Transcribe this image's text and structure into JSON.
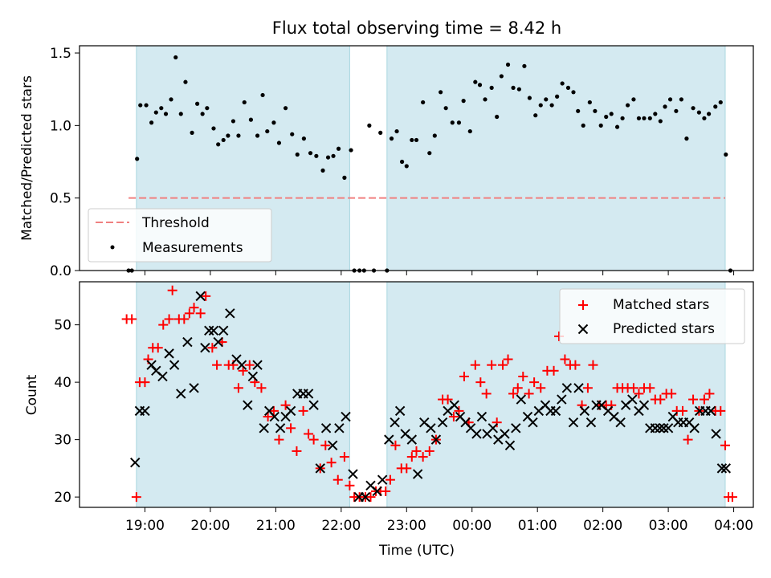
{
  "chart_data": [
    {
      "type": "scatter",
      "title": "Flux total observing time = 8.42 h",
      "xlabel": "",
      "ylabel": "Matched/Predicted stars",
      "ylim": [
        0.0,
        1.55
      ],
      "yticks": [
        "0.0",
        "0.5",
        "1.0",
        "1.5"
      ],
      "xtick_values": [
        19,
        20,
        21,
        22,
        23,
        24,
        25,
        26,
        27,
        28
      ],
      "xlim": [
        18.0,
        28.3
      ],
      "grid": false,
      "legend_position": "lower-left",
      "observing_windows": [
        [
          18.87,
          22.13
        ],
        [
          22.7,
          27.87
        ]
      ],
      "threshold": {
        "name": "Threshold",
        "value": 0.5,
        "x_range": [
          18.75,
          27.87
        ],
        "color": "#f08080"
      },
      "series": [
        {
          "name": "Measurements",
          "color": "#000000",
          "x": [
            18.75,
            18.8,
            18.88,
            18.93,
            19.02,
            19.1,
            19.17,
            19.25,
            19.32,
            19.4,
            19.47,
            19.55,
            19.62,
            19.72,
            19.8,
            19.88,
            19.95,
            20.05,
            20.12,
            20.2,
            20.27,
            20.35,
            20.43,
            20.52,
            20.62,
            20.72,
            20.8,
            20.87,
            20.97,
            21.05,
            21.15,
            21.25,
            21.33,
            21.43,
            21.53,
            21.62,
            21.72,
            21.8,
            21.88,
            21.96,
            22.05,
            22.15,
            22.2,
            22.28,
            22.35,
            22.43,
            22.5,
            22.6,
            22.7,
            22.77,
            22.85,
            22.93,
            23.0,
            23.08,
            23.15,
            23.25,
            23.35,
            23.43,
            23.52,
            23.6,
            23.7,
            23.8,
            23.87,
            23.97,
            24.05,
            24.12,
            24.2,
            24.3,
            24.38,
            24.45,
            24.55,
            24.63,
            24.72,
            24.8,
            24.88,
            24.97,
            25.05,
            25.13,
            25.22,
            25.3,
            25.38,
            25.47,
            25.55,
            25.62,
            25.7,
            25.8,
            25.88,
            25.97,
            26.05,
            26.13,
            26.22,
            26.3,
            26.38,
            26.47,
            26.55,
            26.63,
            26.72,
            26.8,
            26.88,
            26.95,
            27.03,
            27.12,
            27.2,
            27.28,
            27.38,
            27.47,
            27.55,
            27.62,
            27.72,
            27.8,
            27.88,
            27.95
          ],
          "y": [
            0.0,
            0.0,
            0.77,
            1.14,
            1.14,
            1.02,
            1.09,
            1.12,
            1.08,
            1.18,
            1.47,
            1.08,
            1.3,
            0.95,
            1.15,
            1.08,
            1.12,
            0.98,
            0.87,
            0.9,
            0.93,
            1.03,
            0.93,
            1.16,
            1.04,
            0.93,
            1.21,
            0.96,
            1.02,
            0.88,
            1.12,
            0.94,
            0.8,
            0.91,
            0.81,
            0.79,
            0.69,
            0.78,
            0.79,
            0.84,
            0.64,
            0.83,
            0.0,
            0.0,
            0.0,
            1.0,
            0.0,
            0.95,
            0.0,
            0.91,
            0.96,
            0.75,
            0.72,
            0.9,
            0.9,
            1.16,
            0.81,
            0.93,
            1.23,
            1.12,
            1.02,
            1.02,
            1.17,
            0.96,
            1.3,
            1.28,
            1.18,
            1.26,
            1.06,
            1.34,
            1.42,
            1.26,
            1.25,
            1.41,
            1.19,
            1.07,
            1.14,
            1.18,
            1.14,
            1.2,
            1.29,
            1.26,
            1.23,
            1.1,
            1.0,
            1.16,
            1.1,
            1.0,
            1.06,
            1.08,
            0.99,
            1.05,
            1.14,
            1.18,
            1.05,
            1.05,
            1.05,
            1.08,
            1.03,
            1.13,
            1.18,
            1.1,
            1.18,
            0.91,
            1.12,
            1.09,
            1.05,
            1.08,
            1.13,
            1.16,
            0.8,
            0.0
          ]
        }
      ]
    },
    {
      "type": "scatter",
      "title": "",
      "xlabel": "Time (UTC)",
      "ylabel": "Count",
      "ylim": [
        18.2,
        57.5
      ],
      "yticks": [
        "20",
        "30",
        "40",
        "50"
      ],
      "xtick_labels": [
        "19:00",
        "20:00",
        "21:00",
        "22:00",
        "23:00",
        "00:00",
        "01:00",
        "02:00",
        "03:00",
        "04:00"
      ],
      "xtick_values": [
        19,
        20,
        21,
        22,
        23,
        24,
        25,
        26,
        27,
        28
      ],
      "xlim": [
        18.0,
        28.3
      ],
      "grid": false,
      "legend_position": "top-right",
      "observing_windows": [
        [
          18.87,
          22.13
        ],
        [
          22.7,
          27.87
        ]
      ],
      "series": [
        {
          "name": "Matched stars",
          "marker": "+",
          "color": "#ff0000",
          "x": [
            18.72,
            18.8,
            18.87,
            18.92,
            19.0,
            19.05,
            19.12,
            19.2,
            19.28,
            19.37,
            19.42,
            19.52,
            19.6,
            19.68,
            19.75,
            19.85,
            19.93,
            20.03,
            20.1,
            20.18,
            20.28,
            20.35,
            20.43,
            20.5,
            20.6,
            20.68,
            20.78,
            20.88,
            20.97,
            21.05,
            21.15,
            21.23,
            21.32,
            21.42,
            21.5,
            21.58,
            21.68,
            21.76,
            21.85,
            21.95,
            22.05,
            22.13,
            22.2,
            22.28,
            22.37,
            22.45,
            22.53,
            22.6,
            22.68,
            22.75,
            22.83,
            22.92,
            23.0,
            23.08,
            23.15,
            23.25,
            23.35,
            23.45,
            23.55,
            23.63,
            23.72,
            23.8,
            23.88,
            23.95,
            24.05,
            24.13,
            24.22,
            24.3,
            24.38,
            24.47,
            24.55,
            24.63,
            24.7,
            24.78,
            24.87,
            24.95,
            25.05,
            25.15,
            25.25,
            25.33,
            25.42,
            25.5,
            25.58,
            25.68,
            25.77,
            25.85,
            25.95,
            26.05,
            26.13,
            26.22,
            26.3,
            26.38,
            26.47,
            26.55,
            26.63,
            26.72,
            26.8,
            26.88,
            26.97,
            27.05,
            27.13,
            27.22,
            27.3,
            27.38,
            27.47,
            27.55,
            27.63,
            27.72,
            27.8,
            27.87,
            27.92,
            27.98
          ],
          "y": [
            51,
            51,
            20,
            40,
            40,
            44,
            46,
            46,
            50,
            51,
            56,
            51,
            51,
            52,
            53,
            52,
            55,
            46,
            43,
            47,
            43,
            43,
            39,
            42,
            43,
            40,
            39,
            34,
            35,
            30,
            36,
            32,
            28,
            35,
            31,
            30,
            25,
            29,
            26,
            23,
            27,
            22,
            20,
            20,
            20,
            20,
            21,
            21,
            21,
            23,
            29,
            25,
            25,
            27,
            28,
            27,
            28,
            30,
            37,
            37,
            34,
            35,
            41,
            33,
            43,
            40,
            38,
            43,
            33,
            43,
            44,
            38,
            39,
            41,
            38,
            40,
            39,
            42,
            42,
            48,
            44,
            43,
            43,
            36,
            39,
            43,
            36,
            36,
            36,
            39,
            39,
            39,
            39,
            38,
            39,
            39,
            37,
            37,
            38,
            38,
            35,
            35,
            30,
            37,
            35,
            37,
            38,
            35,
            35,
            29,
            20,
            20
          ]
        },
        {
          "name": "Predicted stars",
          "marker": "x",
          "color": "#000000",
          "x": [
            18.85,
            18.92,
            19.0,
            19.1,
            19.17,
            19.27,
            19.37,
            19.45,
            19.55,
            19.65,
            19.75,
            19.85,
            19.92,
            19.98,
            20.05,
            20.12,
            20.2,
            20.3,
            20.4,
            20.48,
            20.57,
            20.65,
            20.72,
            20.82,
            20.9,
            20.98,
            21.07,
            21.15,
            21.23,
            21.33,
            21.42,
            21.5,
            21.58,
            21.68,
            21.77,
            21.87,
            21.97,
            22.07,
            22.18,
            22.27,
            22.37,
            22.45,
            22.55,
            22.63,
            22.73,
            22.82,
            22.9,
            22.98,
            23.08,
            23.17,
            23.27,
            23.37,
            23.45,
            23.55,
            23.63,
            23.73,
            23.82,
            23.9,
            23.98,
            24.07,
            24.15,
            24.23,
            24.32,
            24.4,
            24.5,
            24.58,
            24.67,
            24.75,
            24.85,
            24.93,
            25.02,
            25.12,
            25.2,
            25.28,
            25.37,
            25.45,
            25.55,
            25.63,
            25.72,
            25.82,
            25.9,
            25.98,
            26.08,
            26.17,
            26.27,
            26.35,
            26.45,
            26.55,
            26.63,
            26.72,
            26.8,
            26.87,
            26.93,
            27.0,
            27.07,
            27.15,
            27.23,
            27.32,
            27.4,
            27.48,
            27.57,
            27.65,
            27.73,
            27.82,
            27.88
          ],
          "y": [
            26,
            35,
            35,
            43,
            42,
            41,
            45,
            43,
            38,
            47,
            39,
            55,
            46,
            49,
            49,
            47,
            49,
            52,
            44,
            43,
            36,
            41,
            43,
            32,
            35,
            34,
            32,
            34,
            35,
            38,
            38,
            38,
            36,
            25,
            32,
            29,
            32,
            34,
            24,
            20,
            20,
            22,
            21,
            23,
            30,
            33,
            35,
            31,
            30,
            24,
            33,
            32,
            30,
            33,
            35,
            36,
            34,
            33,
            32,
            31,
            34,
            31,
            32,
            30,
            31,
            29,
            32,
            37,
            34,
            33,
            35,
            36,
            35,
            35,
            37,
            39,
            33,
            39,
            35,
            33,
            36,
            36,
            35,
            34,
            33,
            36,
            37,
            35,
            36,
            32,
            32,
            32,
            32,
            32,
            34,
            33,
            33,
            33,
            32,
            35,
            35,
            35,
            31,
            25,
            25
          ]
        }
      ]
    }
  ]
}
